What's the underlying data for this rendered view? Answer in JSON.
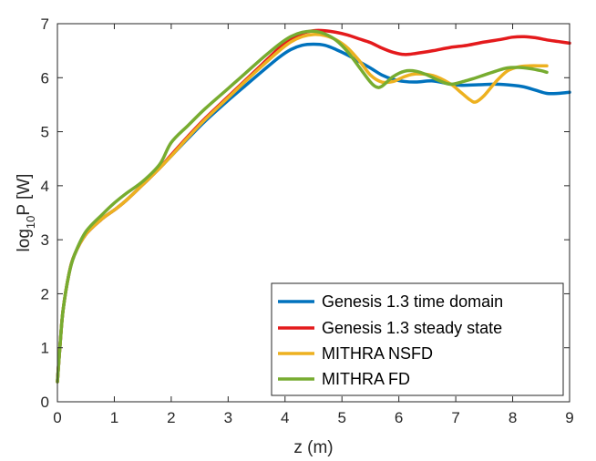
{
  "chart_data": {
    "type": "line",
    "xlabel": "z (m)",
    "ylabel": {
      "base": "log",
      "subscript": "10",
      "rest": "P [W]"
    },
    "xlim": [
      0,
      9
    ],
    "ylim": [
      0,
      7
    ],
    "xticks": [
      "0",
      "1",
      "2",
      "3",
      "4",
      "5",
      "6",
      "7",
      "8",
      "9"
    ],
    "yticks": [
      "0",
      "1",
      "2",
      "3",
      "4",
      "5",
      "6",
      "7"
    ],
    "grid": false,
    "legend_position": "bottom-right",
    "series": [
      {
        "name": "Genesis 1.3 time domain",
        "color": "#0072BD",
        "x": [
          0,
          0.05,
          0.1,
          0.2,
          0.3,
          0.5,
          0.8,
          1.0,
          1.2,
          1.5,
          1.8,
          2.0,
          2.3,
          2.6,
          3.0,
          3.3,
          3.6,
          3.9,
          4.1,
          4.3,
          4.5,
          4.7,
          4.9,
          5.1,
          5.3,
          5.5,
          5.7,
          5.9,
          6.1,
          6.3,
          6.6,
          6.9,
          7.1,
          7.4,
          7.7,
          8.0,
          8.2,
          8.4,
          8.6,
          8.8,
          9.0
        ],
        "y": [
          0.37,
          1.1,
          1.7,
          2.35,
          2.72,
          3.1,
          3.4,
          3.55,
          3.72,
          4.02,
          4.33,
          4.55,
          4.88,
          5.2,
          5.58,
          5.85,
          6.12,
          6.38,
          6.52,
          6.6,
          6.62,
          6.6,
          6.52,
          6.42,
          6.3,
          6.18,
          6.05,
          5.97,
          5.93,
          5.92,
          5.94,
          5.88,
          5.86,
          5.87,
          5.88,
          5.86,
          5.83,
          5.77,
          5.71,
          5.71,
          5.73
        ]
      },
      {
        "name": "Genesis 1.3 steady state",
        "color": "#E41A1C",
        "x": [
          0,
          0.05,
          0.1,
          0.2,
          0.3,
          0.5,
          0.8,
          1.0,
          1.2,
          1.5,
          1.8,
          2.0,
          2.3,
          2.6,
          3.0,
          3.3,
          3.6,
          3.9,
          4.1,
          4.3,
          4.5,
          4.7,
          4.9,
          5.1,
          5.3,
          5.5,
          5.7,
          5.9,
          6.1,
          6.3,
          6.6,
          6.9,
          7.2,
          7.5,
          7.8,
          8.0,
          8.2,
          8.4,
          8.6,
          8.8,
          9.0
        ],
        "y": [
          0.37,
          1.1,
          1.7,
          2.35,
          2.72,
          3.1,
          3.4,
          3.55,
          3.72,
          4.02,
          4.33,
          4.57,
          4.92,
          5.25,
          5.65,
          5.95,
          6.25,
          6.55,
          6.7,
          6.82,
          6.87,
          6.87,
          6.84,
          6.79,
          6.72,
          6.65,
          6.55,
          6.47,
          6.43,
          6.45,
          6.5,
          6.56,
          6.6,
          6.66,
          6.71,
          6.75,
          6.76,
          6.74,
          6.7,
          6.67,
          6.64
        ]
      },
      {
        "name": "MITHRA NSFD",
        "color": "#EDB120",
        "x": [
          0,
          0.05,
          0.1,
          0.2,
          0.3,
          0.5,
          0.8,
          1.0,
          1.2,
          1.5,
          1.8,
          2.0,
          2.3,
          2.6,
          3.0,
          3.3,
          3.6,
          3.9,
          4.1,
          4.3,
          4.5,
          4.7,
          4.9,
          5.1,
          5.3,
          5.5,
          5.7,
          5.9,
          6.1,
          6.3,
          6.6,
          6.9,
          7.1,
          7.25,
          7.35,
          7.5,
          7.7,
          7.9,
          8.1,
          8.3,
          8.5,
          8.6
        ],
        "y": [
          0.37,
          1.1,
          1.7,
          2.35,
          2.72,
          3.1,
          3.4,
          3.55,
          3.72,
          4.02,
          4.33,
          4.55,
          4.9,
          5.23,
          5.63,
          5.93,
          6.22,
          6.5,
          6.66,
          6.76,
          6.8,
          6.78,
          6.7,
          6.55,
          6.32,
          6.05,
          5.92,
          5.93,
          6.02,
          6.07,
          6.04,
          5.89,
          5.72,
          5.59,
          5.55,
          5.67,
          5.92,
          6.12,
          6.2,
          6.22,
          6.22,
          6.22
        ]
      },
      {
        "name": "MITHRA FD",
        "color": "#77AC30",
        "x": [
          0,
          0.05,
          0.1,
          0.2,
          0.3,
          0.5,
          0.8,
          1.0,
          1.2,
          1.5,
          1.8,
          2.0,
          2.3,
          2.6,
          3.0,
          3.3,
          3.6,
          3.9,
          4.1,
          4.3,
          4.5,
          4.7,
          4.9,
          5.1,
          5.3,
          5.5,
          5.6,
          5.7,
          5.9,
          6.1,
          6.3,
          6.5,
          6.7,
          6.9,
          7.1,
          7.3,
          7.5,
          7.7,
          7.9,
          8.1,
          8.3,
          8.5,
          8.6
        ],
        "y": [
          0.37,
          1.1,
          1.7,
          2.35,
          2.72,
          3.15,
          3.48,
          3.68,
          3.85,
          4.08,
          4.4,
          4.8,
          5.12,
          5.43,
          5.8,
          6.08,
          6.36,
          6.62,
          6.76,
          6.84,
          6.86,
          6.81,
          6.69,
          6.48,
          6.2,
          5.92,
          5.83,
          5.84,
          6.02,
          6.12,
          6.12,
          6.05,
          5.95,
          5.88,
          5.92,
          5.98,
          6.05,
          6.12,
          6.18,
          6.19,
          6.17,
          6.13,
          6.1
        ]
      }
    ]
  }
}
